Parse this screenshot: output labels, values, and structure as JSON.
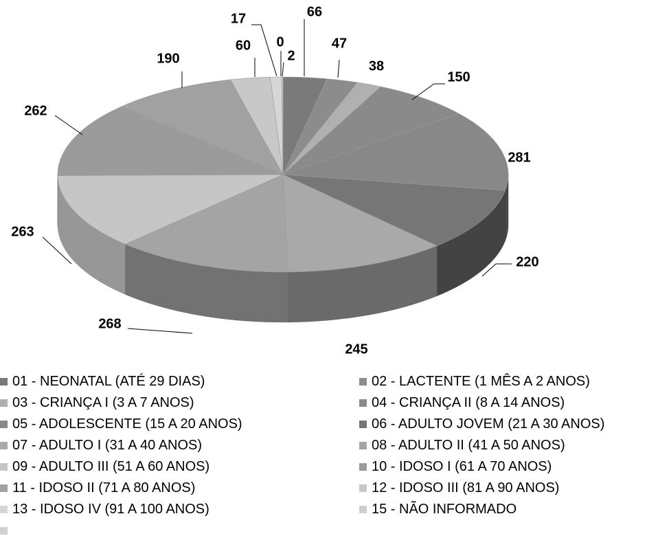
{
  "chart_data": {
    "type": "pie",
    "title": "",
    "legend_position": "bottom",
    "slices": [
      {
        "label": "01 - NEONATAL (ATÉ 29 DIAS)",
        "value": 66,
        "color": "#7a7a7a"
      },
      {
        "label": "02 - LACTENTE (1 MÊS A 2 ANOS)",
        "value": 47,
        "color": "#8c8c8c"
      },
      {
        "label": "03 - CRIANÇA I (3 A 7 ANOS)",
        "value": 38,
        "color": "#b0b0b0"
      },
      {
        "label": "04 - CRIANÇA II (8 A 14 ANOS)",
        "value": 150,
        "color": "#8a8a8a"
      },
      {
        "label": "05 - ADOLESCENTE (15 A 20 ANOS)",
        "value": 281,
        "color": "#888888"
      },
      {
        "label": "06 - ADULTO JOVEM (21 A 30 ANOS)",
        "value": 220,
        "color": "#767676"
      },
      {
        "label": "07 - ADULTO I (31 A 40 ANOS)",
        "value": 245,
        "color": "#a9a9a9"
      },
      {
        "label": "08 - ADULTO II (41 A 50 ANOS)",
        "value": 268,
        "color": "#a4a4a4"
      },
      {
        "label": "09 - ADULTO III (51 A 60 ANOS)",
        "value": 263,
        "color": "#c6c6c6"
      },
      {
        "label": "10 - IDOSO I (61 A 70 ANOS)",
        "value": 262,
        "color": "#9b9b9b"
      },
      {
        "label": "11 - IDOSO II (71 A 80 ANOS)",
        "value": 190,
        "color": "#a1a1a1"
      },
      {
        "label": "12 - IDOSO III (81 A 90 ANOS)",
        "value": 60,
        "color": "#c8c8c8"
      },
      {
        "label": "13 - IDOSO IV (91 A 100 ANOS)",
        "value": 17,
        "color": "#d6d6d6"
      },
      {
        "label": "15 - NÃO INFORMADO",
        "value": 0,
        "color": "#cfcfcf"
      },
      {
        "label": "",
        "value": 2,
        "color": "#d0d0d0"
      }
    ]
  }
}
